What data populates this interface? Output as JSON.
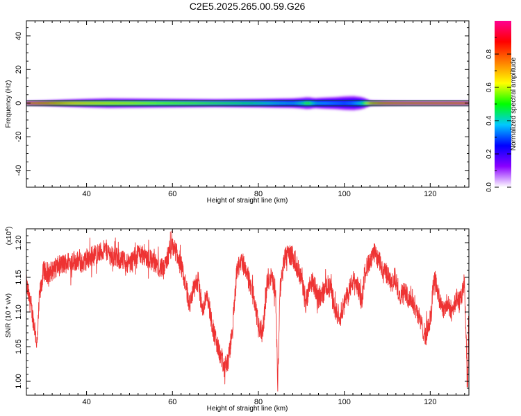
{
  "title": "C2E5.2025.265.00.59.G26",
  "colors": {
    "snr_line": "#ee3333",
    "axis": "#000000",
    "background": "#ffffff"
  },
  "chart_data": [
    {
      "type": "heatmap",
      "name": "spectrogram",
      "xlabel": "Height of straight line (km)",
      "ylabel": "Frequency (Hz)",
      "xlim": [
        26,
        129
      ],
      "ylim": [
        -50,
        49
      ],
      "xticks": [
        40,
        60,
        80,
        100,
        120
      ],
      "yticks": [
        -40,
        -20,
        0,
        20,
        40
      ],
      "colorbar": {
        "label": "Normalized spectral amplitude",
        "range": [
          0,
          1
        ],
        "ticks": [
          "0.0",
          "0.2",
          "0.4",
          "0.6",
          "0.8"
        ],
        "tick_values": [
          0,
          0.2,
          0.4,
          0.6,
          0.8
        ],
        "colormap": [
          "#ffffff",
          "#8a00ff",
          "#0000ff",
          "#00c8ff",
          "#00ff00",
          "#ffff00",
          "#ff8000",
          "#ff0000",
          "#ff0090"
        ]
      },
      "band": {
        "x": [
          26,
          30,
          35,
          40,
          45,
          50,
          55,
          60,
          65,
          70,
          75,
          80,
          85,
          88,
          90,
          91.5,
          93,
          95,
          98,
          100,
          102,
          104,
          106,
          110,
          115,
          120,
          125,
          129
        ],
        "center_amp": [
          0.95,
          0.88,
          0.78,
          0.72,
          0.68,
          0.66,
          0.62,
          0.6,
          0.58,
          0.55,
          0.52,
          0.48,
          0.42,
          0.4,
          0.45,
          0.55,
          0.42,
          0.38,
          0.35,
          0.33,
          0.35,
          0.45,
          0.8,
          0.9,
          0.92,
          0.93,
          0.94,
          0.96
        ],
        "half_width_hz": [
          1.0,
          1.3,
          1.8,
          2.2,
          2.5,
          2.4,
          2.3,
          2.2,
          2.1,
          2.0,
          2.1,
          2.2,
          2.4,
          2.5,
          2.8,
          3.2,
          2.6,
          2.9,
          3.2,
          3.6,
          3.8,
          3.2,
          1.3,
          1.1,
          1.0,
          1.0,
          1.0,
          1.0
        ]
      }
    },
    {
      "type": "line",
      "name": "snr",
      "xlabel": "Height of straight line (km)",
      "ylabel": "SNR (10 * v/v)",
      "y_multiplier": "(x10",
      "y_multiplier_exp": "4",
      "y_multiplier_close": ")",
      "xlim": [
        26,
        129
      ],
      "ylim": [
        0.98,
        1.22
      ],
      "xticks": [
        40,
        60,
        80,
        100,
        120
      ],
      "yticks": [
        "1.00",
        "1.05",
        "1.10",
        "1.15",
        "1.20"
      ],
      "ytick_values": [
        1.0,
        1.05,
        1.1,
        1.15,
        1.2
      ],
      "series": [
        {
          "x": [
            26,
            27,
            28,
            28.5,
            29,
            30,
            31,
            33,
            35,
            37,
            39,
            41,
            43,
            44.5,
            46,
            48,
            50,
            52,
            54,
            56,
            58,
            59,
            60,
            61,
            62,
            63,
            64,
            65,
            66,
            67,
            68,
            69,
            70,
            71,
            72,
            73,
            74,
            75,
            76,
            77,
            78,
            79,
            80,
            81,
            82,
            83,
            84,
            84.5,
            85,
            86,
            87,
            88,
            89,
            90,
            91,
            92,
            93,
            94,
            95,
            96,
            97,
            98,
            99,
            100,
            101,
            102,
            103,
            104,
            105,
            106,
            107,
            108,
            109,
            110,
            111,
            112,
            113,
            114,
            115,
            116,
            117,
            118,
            119,
            120,
            121,
            122,
            123,
            124,
            125,
            126,
            127,
            128,
            128.7,
            129
          ],
          "y": [
            1.14,
            1.11,
            1.075,
            1.05,
            1.12,
            1.16,
            1.155,
            1.165,
            1.17,
            1.175,
            1.17,
            1.18,
            1.185,
            1.19,
            1.18,
            1.175,
            1.17,
            1.185,
            1.18,
            1.17,
            1.16,
            1.18,
            1.195,
            1.185,
            1.165,
            1.14,
            1.11,
            1.135,
            1.145,
            1.1,
            1.13,
            1.09,
            1.06,
            1.04,
            1.02,
            1.03,
            1.075,
            1.16,
            1.175,
            1.165,
            1.14,
            1.12,
            1.08,
            1.07,
            1.14,
            1.155,
            1.13,
            0.995,
            1.13,
            1.175,
            1.185,
            1.18,
            1.165,
            1.15,
            1.11,
            1.145,
            1.14,
            1.12,
            1.125,
            1.14,
            1.13,
            1.1,
            1.095,
            1.11,
            1.13,
            1.145,
            1.14,
            1.115,
            1.165,
            1.17,
            1.185,
            1.175,
            1.16,
            1.155,
            1.14,
            1.145,
            1.125,
            1.13,
            1.12,
            1.115,
            1.1,
            1.08,
            1.065,
            1.09,
            1.155,
            1.12,
            1.105,
            1.11,
            1.1,
            1.12,
            1.115,
            1.14,
            0.985,
            1.12
          ]
        }
      ]
    }
  ]
}
